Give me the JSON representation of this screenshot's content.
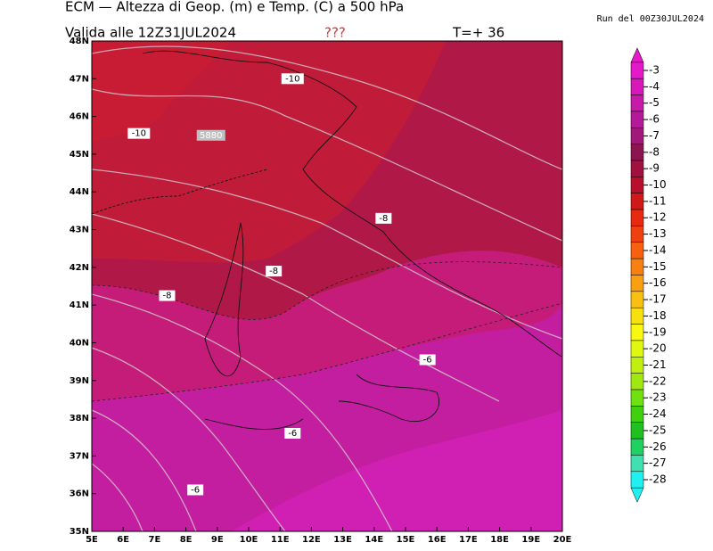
{
  "header": {
    "title": "ECM — Altezza di Geop. (m) e Temp. (C) a 500 hPa",
    "valid": "Valida alle 12Z31JUL2024",
    "unknown": "???",
    "lead": "T=+ 36",
    "run": "Run del 00Z30JUL2024"
  },
  "map": {
    "lat_labels": [
      "48N",
      "47N",
      "46N",
      "45N",
      "44N",
      "43N",
      "42N",
      "41N",
      "40N",
      "39N",
      "38N",
      "37N",
      "36N",
      "35N"
    ],
    "lon_labels": [
      "5E",
      "6E",
      "7E",
      "8E",
      "9E",
      "10E",
      "11E",
      "12E",
      "13E",
      "14E",
      "15E",
      "16E",
      "17E",
      "18E",
      "19E",
      "20E"
    ],
    "contour_labels": [
      {
        "text": "-10",
        "lon": 11.4,
        "lat": 47.0
      },
      {
        "text": "-10",
        "lon": 6.5,
        "lat": 45.55
      },
      {
        "text": "5880",
        "lon": 8.8,
        "lat": 45.5
      },
      {
        "text": "-8",
        "lon": 14.3,
        "lat": 43.3
      },
      {
        "text": "-8",
        "lon": 10.8,
        "lat": 41.9
      },
      {
        "text": "-8",
        "lon": 7.4,
        "lat": 41.25
      },
      {
        "text": "-6",
        "lon": 15.7,
        "lat": 39.55
      },
      {
        "text": "-6",
        "lon": 11.4,
        "lat": 37.6
      },
      {
        "text": "-6",
        "lon": 8.3,
        "lat": 36.1
      }
    ]
  },
  "colorbar": {
    "labels": [
      "-3",
      "-4",
      "-5",
      "-6",
      "-7",
      "-8",
      "-9",
      "-10",
      "-11",
      "-12",
      "-13",
      "-14",
      "-15",
      "-16",
      "-17",
      "-18",
      "-19",
      "-20",
      "-21",
      "-22",
      "-23",
      "-24",
      "-25",
      "-26",
      "-27",
      "-28"
    ],
    "colors": [
      "#e619c8",
      "#d818b8",
      "#c81aa8",
      "#b41a98",
      "#a0187a",
      "#8c1450",
      "#a01040",
      "#b8102c",
      "#d01818",
      "#e82810",
      "#f04010",
      "#f86010",
      "#f88010",
      "#f8a010",
      "#f8c010",
      "#f8e010",
      "#f8f810",
      "#e0f810",
      "#c0f010",
      "#a0e810",
      "#70e010",
      "#40d010",
      "#20c020",
      "#20d060",
      "#40e0b0",
      "#20f0f0"
    ]
  }
}
